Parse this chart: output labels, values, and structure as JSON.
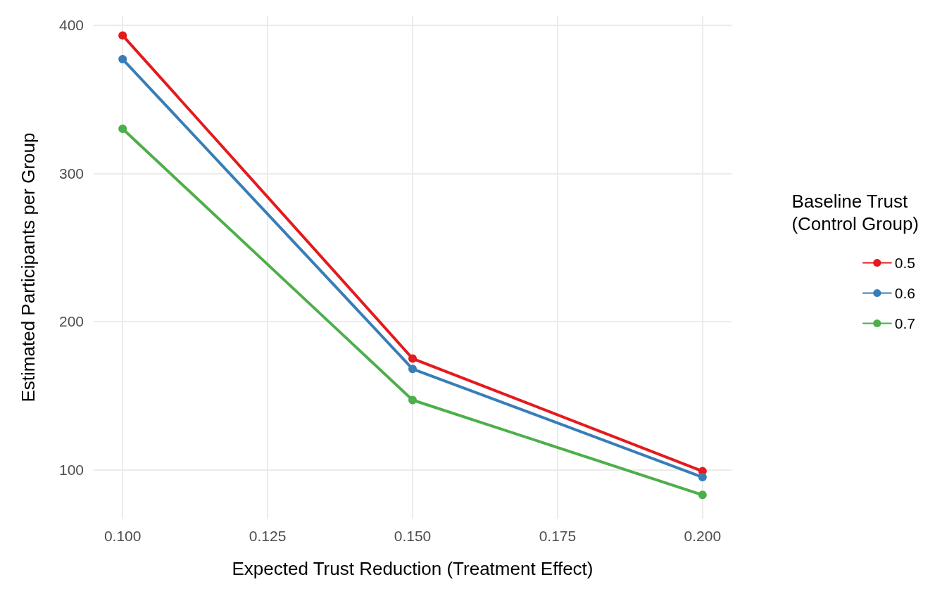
{
  "chart_data": {
    "type": "line",
    "xlabel": "Expected Trust Reduction (Treatment Effect)",
    "ylabel": "Estimated Participants per Group",
    "legend_title": "Baseline Trust\n(Control Group)",
    "x": [
      0.1,
      0.15,
      0.2
    ],
    "series": [
      {
        "name": "0.5",
        "color": "#e41a1c",
        "values": [
          393,
          175,
          99
        ]
      },
      {
        "name": "0.6",
        "color": "#377eb8",
        "values": [
          377,
          168,
          95
        ]
      },
      {
        "name": "0.7",
        "color": "#4daf4a",
        "values": [
          330,
          147,
          83
        ]
      }
    ],
    "xlim": [
      0.095,
      0.205
    ],
    "ylim": [
      67,
      406
    ],
    "xticks": [
      {
        "value": 0.1,
        "label": "0.100"
      },
      {
        "value": 0.125,
        "label": "0.125"
      },
      {
        "value": 0.15,
        "label": "0.150"
      },
      {
        "value": 0.175,
        "label": "0.175"
      },
      {
        "value": 0.2,
        "label": "0.200"
      }
    ],
    "yticks": [
      100,
      200,
      300,
      400
    ],
    "grid": true,
    "legend": "right",
    "marker": "circle",
    "line_style": "solid"
  }
}
